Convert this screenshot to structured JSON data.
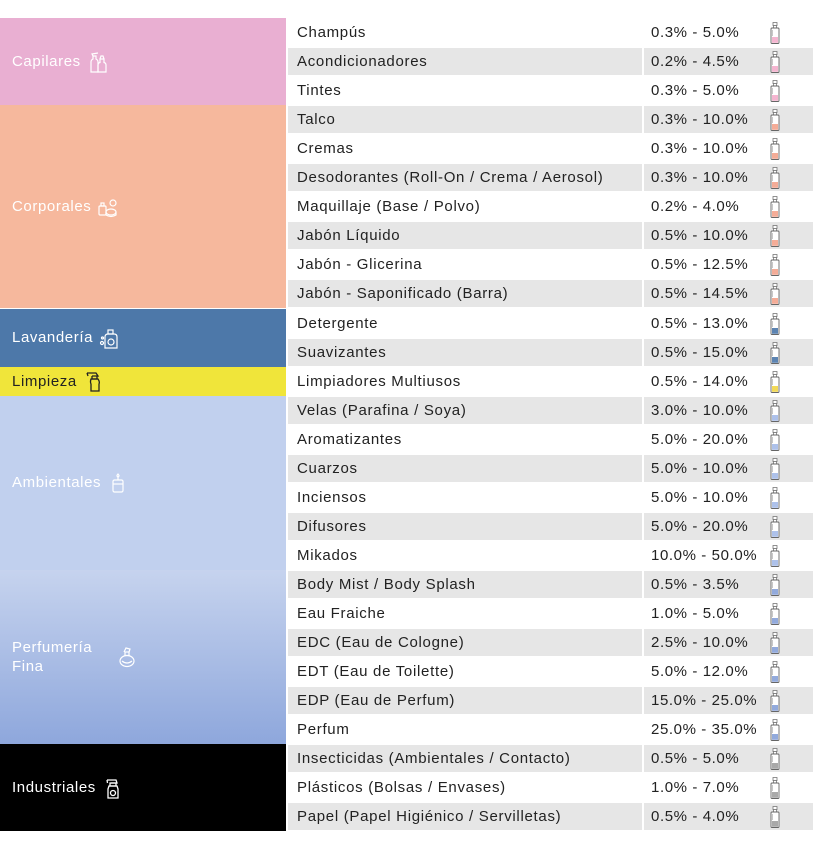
{
  "colors": {
    "Capilares": "#e9afd2",
    "Corporales": "#f6b89d",
    "Lavanderia": "#4d78a9",
    "Limpieza": "#f0e53a",
    "Ambientales": "#c1d0ee",
    "Perfumeria_top": "#c6d3ee",
    "Perfumeria_bottom": "#8ea7dc",
    "Industriales": "#000000"
  },
  "categories": [
    {
      "label": "Capilares",
      "icon": "shampoo-bottles-icon",
      "color": "#e9afd2",
      "text_color": "#ffffff",
      "rows": [
        {
          "product": "Champús",
          "range": "0.3% - 5.0%",
          "bottle_fill": "#f2a8c8"
        },
        {
          "product": "Acondicionadores",
          "range": "0.2% - 4.5%",
          "bottle_fill": "#f2a8c8"
        },
        {
          "product": "Tintes",
          "range": "0.3% - 5.0%",
          "bottle_fill": "#f2a8c8"
        }
      ]
    },
    {
      "label": "Corporales",
      "icon": "cosmetics-icon",
      "color": "#f6b89d",
      "text_color": "#ffffff",
      "rows": [
        {
          "product": "Talco",
          "range": "0.3% - 10.0%",
          "bottle_fill": "#f29e85"
        },
        {
          "product": "Cremas",
          "range": "0.3% - 10.0%",
          "bottle_fill": "#f29e85"
        },
        {
          "product": "Desodorantes (Roll-On /  Crema /  Aerosol)",
          "range": "0.3% - 10.0%",
          "bottle_fill": "#f29e85"
        },
        {
          "product": "Maquillaje (Base /  Polvo)",
          "range": "0.2% - 4.0%",
          "bottle_fill": "#f29e85"
        },
        {
          "product": "Jabón Líquido",
          "range": "0.5% - 10.0%",
          "bottle_fill": "#f29e85"
        },
        {
          "product": "Jabón - Glicerina",
          "range": "0.5% - 12.5%",
          "bottle_fill": "#f29e85"
        },
        {
          "product": "Jabón - Saponificado (Barra)",
          "range": "0.5% - 14.5%",
          "bottle_fill": "#f29e85"
        }
      ]
    },
    {
      "label": "Lavandería",
      "icon": "laundry-detergent-icon",
      "color": "#4d78a9",
      "text_color": "#ffffff",
      "rows": [
        {
          "product": "Detergente",
          "range": "0.5% - 13.0%",
          "bottle_fill": "#3f6fa5"
        },
        {
          "product": "Suavizantes",
          "range": "0.5% - 15.0%",
          "bottle_fill": "#3f6fa5"
        }
      ]
    },
    {
      "label": "Limpieza",
      "icon": "spray-bottle-icon",
      "color": "#f0e53a",
      "text_color": "#222222",
      "rows": [
        {
          "product": "Limpiadores Multiusos",
          "range": "0.5% - 14.0%",
          "bottle_fill": "#f0d23a"
        }
      ]
    },
    {
      "label": "Ambientales",
      "icon": "candle-jar-icon",
      "color": "#c1d0ee",
      "text_color": "#ffffff",
      "rows": [
        {
          "product": "Velas (Parafina /  Soya)",
          "range": "3.0% - 10.0%",
          "bottle_fill": "#9fb6e6"
        },
        {
          "product": "Aromatizantes",
          "range": "5.0% - 20.0%",
          "bottle_fill": "#9fb6e6"
        },
        {
          "product": "Cuarzos",
          "range": "5.0% - 10.0%",
          "bottle_fill": "#9fb6e6"
        },
        {
          "product": "Inciensos",
          "range": "5.0% - 10.0%",
          "bottle_fill": "#9fb6e6"
        },
        {
          "product": "Difusores",
          "range": "5.0% - 20.0%",
          "bottle_fill": "#9fb6e6"
        },
        {
          "product": "Mikados",
          "range": "10.0% - 50.0%",
          "bottle_fill": "#9fb6e6"
        }
      ]
    },
    {
      "label": "Perfumería\nFina",
      "icon": "perfume-bottle-icon",
      "color": "#a9bce5",
      "text_color": "#ffffff",
      "rows": [
        {
          "product": "Body Mist /  Body Splash",
          "range": "0.5% - 3.5%",
          "bottle_fill": "#7f9bd6"
        },
        {
          "product": "Eau Fraiche",
          "range": "1.0% - 5.0%",
          "bottle_fill": "#7f9bd6"
        },
        {
          "product": "EDC (Eau de Cologne)",
          "range": "2.5% - 10.0%",
          "bottle_fill": "#7f9bd6"
        },
        {
          "product": "EDT (Eau de Toilette)",
          "range": "5.0% - 12.0%",
          "bottle_fill": "#7f9bd6"
        },
        {
          "product": "EDP (Eau de Perfum)",
          "range": "15.0% - 25.0%",
          "bottle_fill": "#7f9bd6"
        },
        {
          "product": "Perfum",
          "range": "25.0% - 35.0%",
          "bottle_fill": "#7f9bd6"
        }
      ]
    },
    {
      "label": "Industriales",
      "icon": "industrial-spray-icon",
      "color": "#000000",
      "text_color": "#ffffff",
      "rows": [
        {
          "product": "Insecticidas (Ambientales /  Contacto)",
          "range": "0.5% - 5.0%",
          "bottle_fill": "#9a9a9a"
        },
        {
          "product": "Plásticos (Bolsas /  Envases)",
          "range": "1.0% - 7.0%",
          "bottle_fill": "#9a9a9a"
        },
        {
          "product": "Papel (Papel Higiénico /  Servilletas)",
          "range": "0.5% - 4.0%",
          "bottle_fill": "#9a9a9a"
        }
      ]
    }
  ]
}
